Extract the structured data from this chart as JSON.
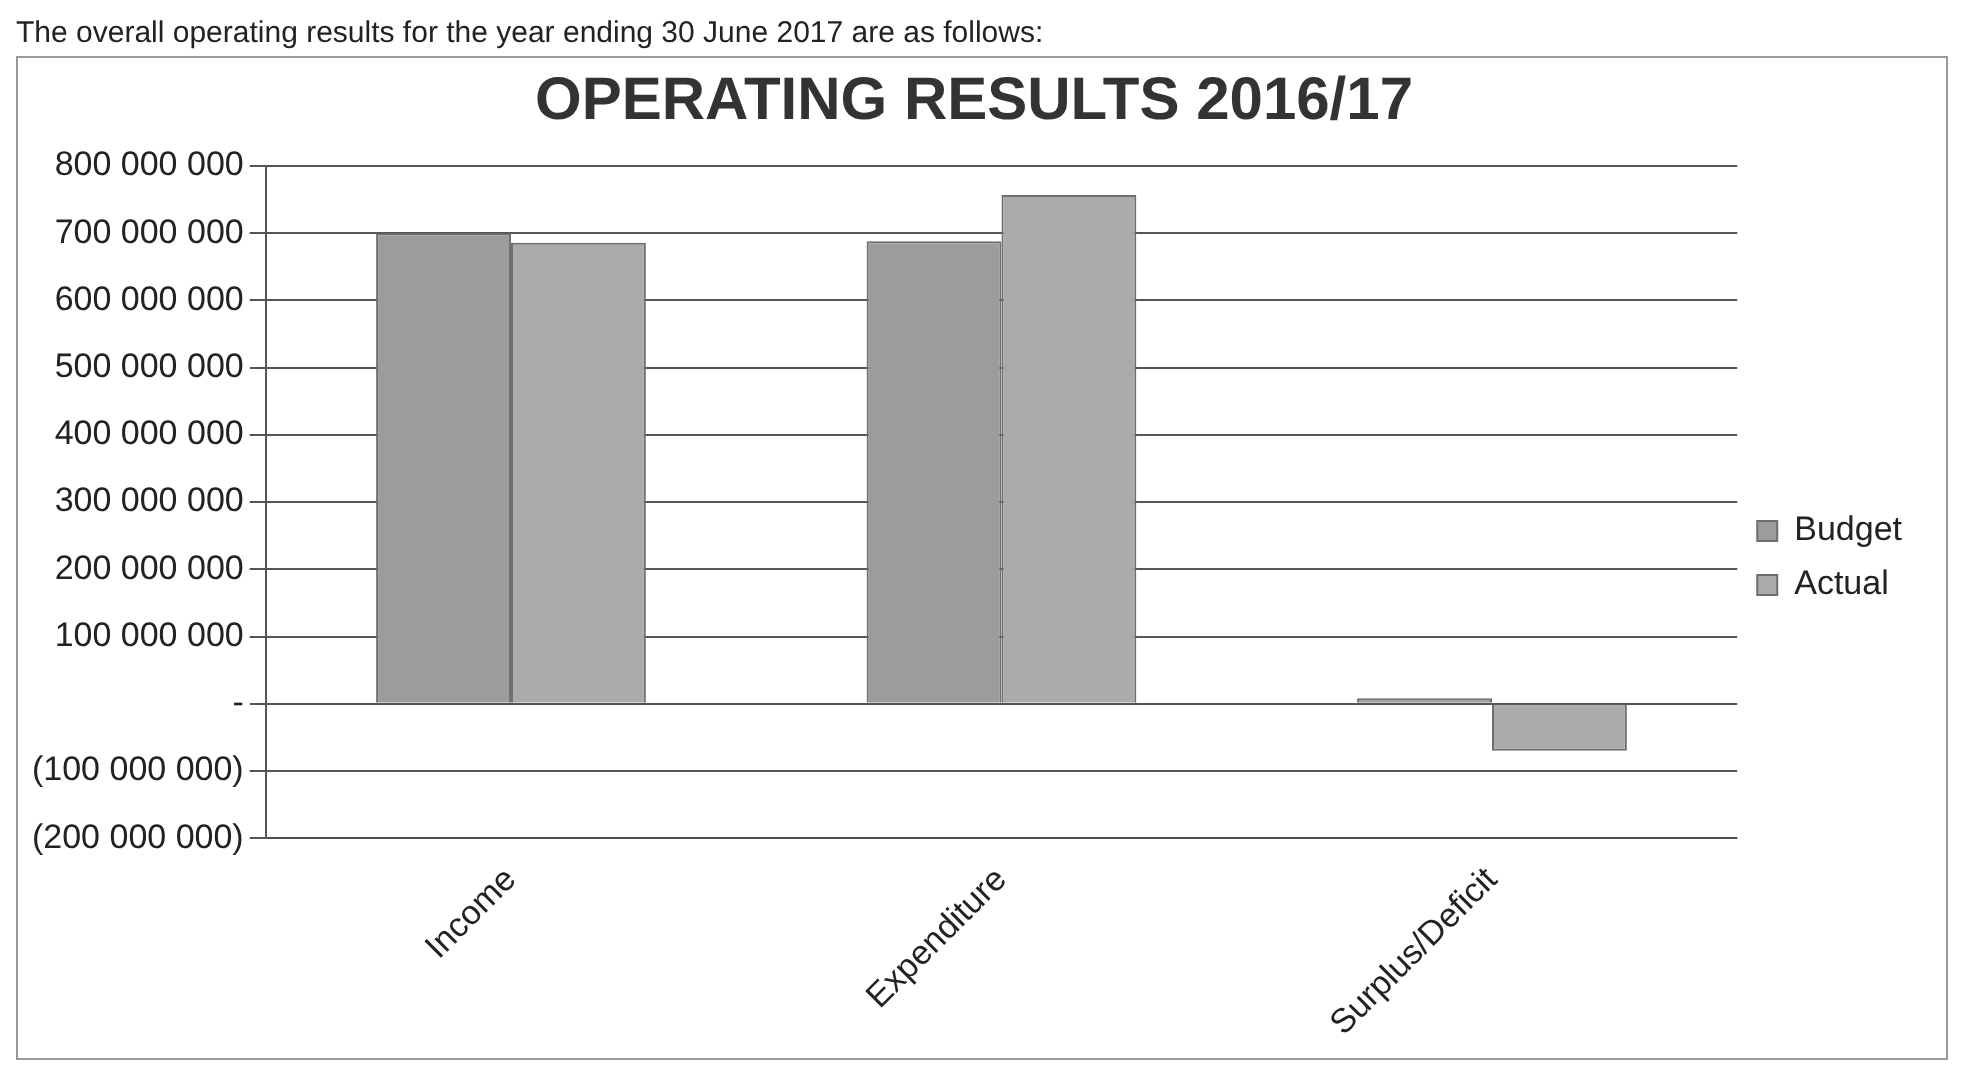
{
  "chart_data": {
    "type": "bar",
    "title": "OPERATING RESULTS 2016/17",
    "annotations": [
      "The overall operating results for the year ending 30 June 2017 are as follows:"
    ],
    "categories": [
      "Income",
      "Expenditure",
      "Surplus/Deficit"
    ],
    "series": [
      {
        "name": "Budget",
        "color": "#9c9c9c",
        "values": [
          700000000,
          688000000,
          8000000
        ]
      },
      {
        "name": "Actual",
        "color": "#ababab",
        "values": [
          686000000,
          757000000,
          -70000000
        ]
      }
    ],
    "ylim": [
      -200000000,
      800000000
    ],
    "yticks": [
      {
        "value": -200000000,
        "label": "(200 000 000)"
      },
      {
        "value": -100000000,
        "label": "(100 000 000)"
      },
      {
        "value": 0,
        "label": "-"
      },
      {
        "value": 100000000,
        "label": "100 000 000"
      },
      {
        "value": 200000000,
        "label": "200 000 000"
      },
      {
        "value": 300000000,
        "label": "300 000 000"
      },
      {
        "value": 400000000,
        "label": "400 000 000"
      },
      {
        "value": 500000000,
        "label": "500 000 000"
      },
      {
        "value": 600000000,
        "label": "600 000 000"
      },
      {
        "value": 700000000,
        "label": "700 000 000"
      },
      {
        "value": 800000000,
        "label": "800 000 000"
      }
    ],
    "grid": "y",
    "legend": "right"
  }
}
